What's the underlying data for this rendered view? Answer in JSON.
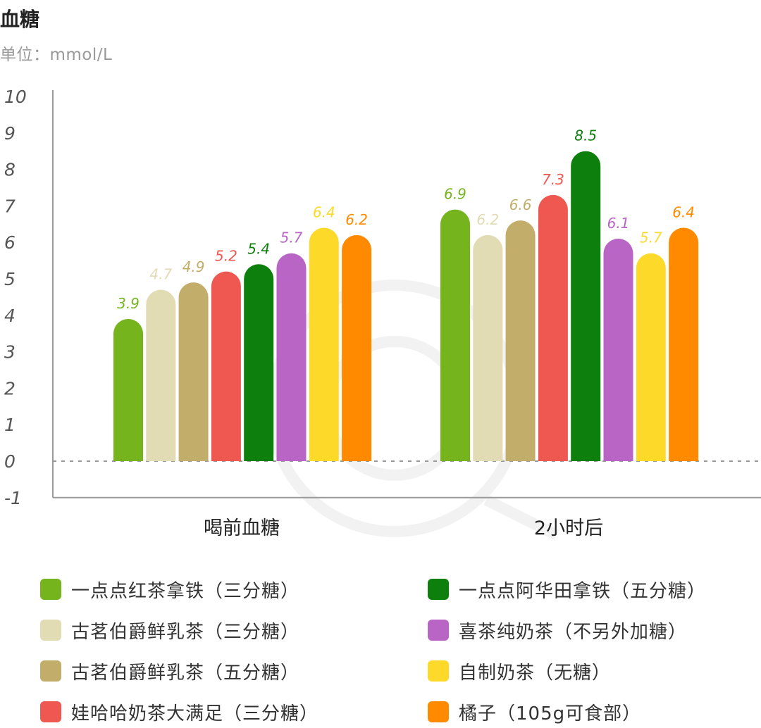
{
  "header": {
    "title": "血糖",
    "unit": "单位：mmol/L"
  },
  "chart_data": {
    "type": "bar",
    "categories": [
      "喝前血糖",
      "2小时后"
    ],
    "ylim": [
      -1,
      10
    ],
    "yticks": [
      "10",
      "9",
      "8",
      "7",
      "6",
      "5",
      "4",
      "3",
      "2",
      "1",
      "0",
      "-1"
    ],
    "baseline": 0,
    "baseline_style": "dashed",
    "grid": false,
    "legend_position": "bottom",
    "series": [
      {
        "name": "一点点红茶拿铁（三分糖）",
        "color": "#76B41E",
        "values": [
          3.9,
          6.9
        ],
        "labels": [
          "3.9",
          "6.9"
        ]
      },
      {
        "name": "古茗伯爵鲜乳茶（三分糖）",
        "color": "#E2DCB4",
        "values": [
          4.7,
          6.2
        ],
        "labels": [
          "4.7",
          "6.2"
        ]
      },
      {
        "name": "古茗伯爵鲜乳茶（五分糖）",
        "color": "#C2AE6A",
        "values": [
          4.9,
          6.6
        ],
        "labels": [
          "4.9",
          "6.6"
        ]
      },
      {
        "name": "娃哈哈奶茶大满足（三分糖）",
        "color": "#EE5851",
        "values": [
          5.2,
          7.3
        ],
        "labels": [
          "5.2",
          "7.3"
        ]
      },
      {
        "name": "一点点阿华田拿铁（五分糖）",
        "color": "#0C7F0C",
        "values": [
          5.4,
          8.5
        ],
        "labels": [
          "5.4",
          "8.5"
        ]
      },
      {
        "name": "喜茶纯奶茶（不另外加糖）",
        "color": "#B865C6",
        "values": [
          5.7,
          6.1
        ],
        "labels": [
          "5.7",
          "6.1"
        ]
      },
      {
        "name": "自制奶茶（无糖）",
        "color": "#FDD92A",
        "values": [
          6.4,
          5.7
        ],
        "labels": [
          "6.4",
          "5.7"
        ]
      },
      {
        "name": "橘子（105g可食部）",
        "color": "#FF8A00",
        "values": [
          6.2,
          6.4
        ],
        "labels": [
          "6.2",
          "6.4"
        ]
      }
    ]
  },
  "legend": {
    "items": [
      {
        "label": "一点点红茶拿铁（三分糖）",
        "color": "#76B41E"
      },
      {
        "label": "一点点阿华田拿铁（五分糖）",
        "color": "#0C7F0C"
      },
      {
        "label": "古茗伯爵鲜乳茶（三分糖）",
        "color": "#E2DCB4"
      },
      {
        "label": "喜茶纯奶茶（不另外加糖）",
        "color": "#B865C6"
      },
      {
        "label": "古茗伯爵鲜乳茶（五分糖）",
        "color": "#C2AE6A"
      },
      {
        "label": "自制奶茶（无糖）",
        "color": "#FDD92A"
      },
      {
        "label": "娃哈哈奶茶大满足（三分糖）",
        "color": "#EE5851"
      },
      {
        "label": "橘子（105g可食部）",
        "color": "#FF8A00"
      }
    ]
  }
}
